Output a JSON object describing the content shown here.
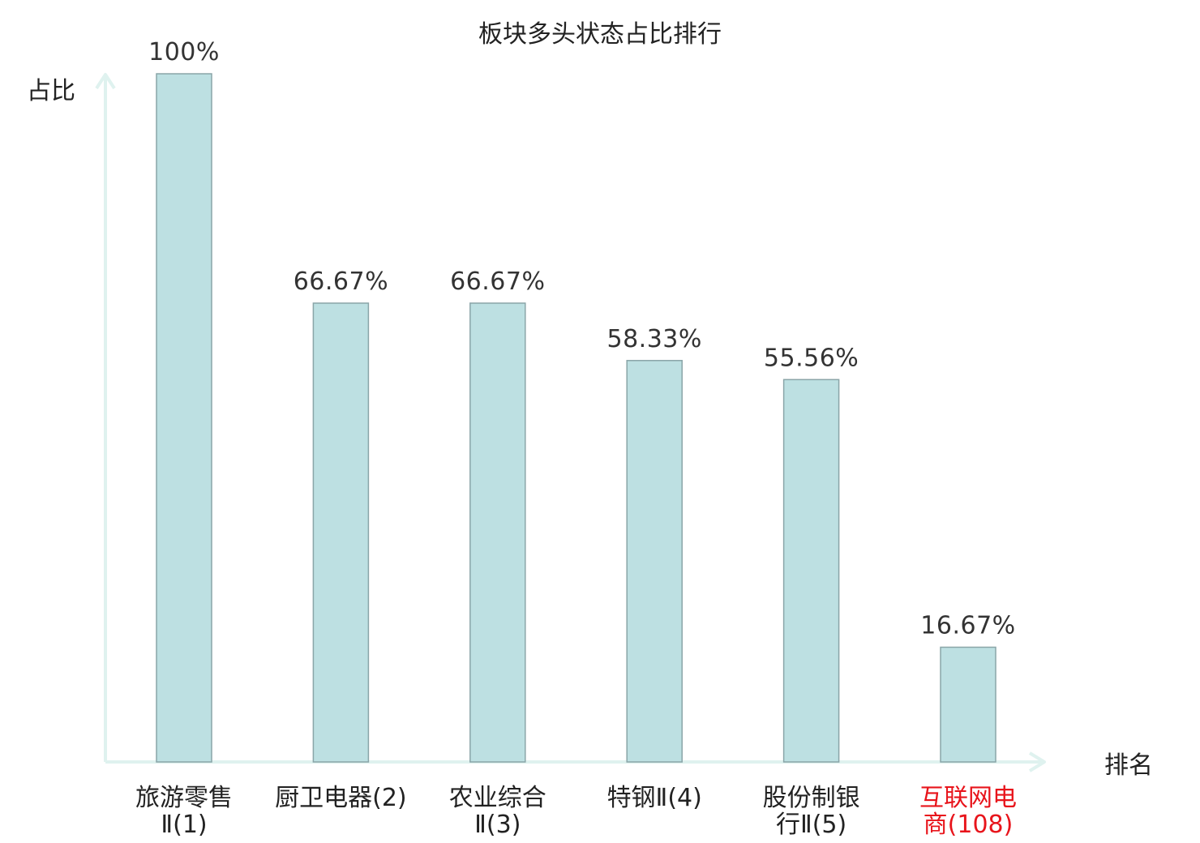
{
  "chart_data": {
    "type": "bar",
    "title": "板块多头状态占比排行",
    "ylabel": "占比",
    "xlabel": "排名",
    "ylim": [
      0,
      100
    ],
    "grid": false,
    "categories": [
      {
        "name": "旅游零售Ⅱ",
        "rank_text": "(1)",
        "lines": [
          "旅游零售",
          "Ⅱ(1)"
        ],
        "highlight": false
      },
      {
        "name": "厨卫电器",
        "rank_text": "(2)",
        "lines": [
          "厨卫电器(2)"
        ],
        "highlight": false
      },
      {
        "name": "农业综合Ⅱ",
        "rank_text": "(3)",
        "lines": [
          "农业综合",
          "Ⅱ(3)"
        ],
        "highlight": false
      },
      {
        "name": "特钢Ⅱ",
        "rank_text": "(4)",
        "lines": [
          "特钢Ⅱ(4)"
        ],
        "highlight": false
      },
      {
        "name": "股份制银行Ⅱ",
        "rank_text": "(5)",
        "lines": [
          "股份制银",
          "行Ⅱ(5)"
        ],
        "highlight": false
      },
      {
        "name": "互联网电商",
        "rank_text": "(108)",
        "lines": [
          "互联网电",
          "商(108)"
        ],
        "highlight": true
      }
    ],
    "values": [
      100,
      66.67,
      66.67,
      58.33,
      55.56,
      16.67
    ],
    "value_labels": [
      "100%",
      "66.67%",
      "66.67%",
      "58.33%",
      "55.56%",
      "16.67%"
    ],
    "colors": {
      "bar_fill": "#bde0e2",
      "bar_stroke": "#8aa5a8",
      "axis": "#dff2ef",
      "highlight_text": "#e8141b",
      "normal_text": "#222222"
    }
  }
}
